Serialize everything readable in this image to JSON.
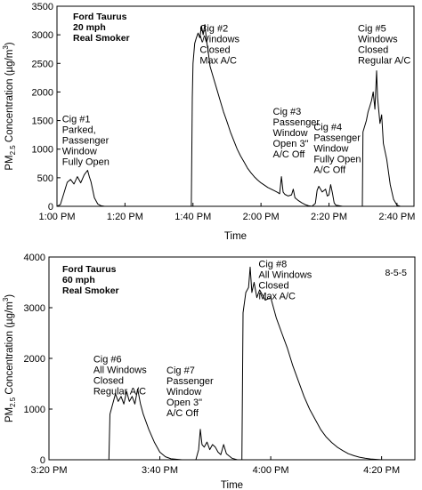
{
  "chart_data": [
    {
      "type": "line",
      "xlabel": "Time",
      "ylabel": "PM",
      "ylabel_sub": "2.5",
      "ylabel_tail": " Concentration (µg/m",
      "ylabel_sup": "3",
      "ylabel_close": ")",
      "xlim": [
        0,
        105
      ],
      "ylim": [
        0,
        3500
      ],
      "y_ticks": [
        0,
        500,
        1000,
        1500,
        2000,
        2500,
        3000,
        3500
      ],
      "x_ticks": [
        {
          "v": 0,
          "label": "1:00 PM"
        },
        {
          "v": 20,
          "label": "1:20 PM"
        },
        {
          "v": 40,
          "label": "1:40 PM"
        },
        {
          "v": 60,
          "label": "2:00 PM"
        },
        {
          "v": 80,
          "label": "2:20 PM"
        },
        {
          "v": 100,
          "label": "2:40 PM"
        }
      ],
      "info_lines": [
        "Ford Taurus",
        "20 mph",
        "Real Smoker"
      ],
      "annotations": [
        {
          "x": 1.5,
          "y": 1470,
          "lines": [
            "Cig #1",
            "Parked,",
            "Passenger",
            "Window",
            "Fully Open"
          ]
        },
        {
          "x": 42,
          "y": 3060,
          "lines": [
            "Cig #2",
            "Windows",
            "Closed",
            "Max A/C"
          ]
        },
        {
          "x": 63.5,
          "y": 1600,
          "lines": [
            "Cig #3",
            "Passenger",
            "Window",
            "Open 3\"",
            "A/C Off"
          ]
        },
        {
          "x": 75.5,
          "y": 1330,
          "lines": [
            "Cig #4",
            "Passenger",
            "Window",
            "Fully Open",
            "A/C Off"
          ]
        },
        {
          "x": 88.5,
          "y": 3060,
          "lines": [
            "Cig #5",
            "Windows",
            "Closed",
            "Regular A/C"
          ]
        }
      ],
      "series": [
        {
          "points": [
            [
              0,
              0
            ],
            [
              1,
              30
            ],
            [
              2,
              220
            ],
            [
              3,
              420
            ],
            [
              4,
              470
            ],
            [
              5,
              390
            ],
            [
              6,
              520
            ],
            [
              7,
              410
            ],
            [
              8,
              550
            ],
            [
              9,
              630
            ],
            [
              9.5,
              520
            ],
            [
              10,
              430
            ],
            [
              11,
              150
            ],
            [
              12,
              40
            ],
            [
              13,
              10
            ],
            [
              14,
              0
            ],
            [
              39.5,
              0
            ],
            [
              39.8,
              1900
            ],
            [
              40,
              2500
            ],
            [
              40.5,
              2850
            ],
            [
              41,
              2950
            ],
            [
              41.5,
              3030
            ],
            [
              42,
              2950
            ],
            [
              42.5,
              3150
            ],
            [
              43,
              3000
            ],
            [
              43.5,
              3180
            ],
            [
              44,
              2900
            ],
            [
              44.5,
              2700
            ],
            [
              45,
              2450
            ],
            [
              46,
              2250
            ],
            [
              47,
              2050
            ],
            [
              48,
              1850
            ],
            [
              49,
              1650
            ],
            [
              50,
              1480
            ],
            [
              51,
              1300
            ],
            [
              52,
              1150
            ],
            [
              53,
              1000
            ],
            [
              54,
              880
            ],
            [
              55,
              780
            ],
            [
              56,
              670
            ],
            [
              57,
              590
            ],
            [
              58,
              520
            ],
            [
              59,
              460
            ],
            [
              60,
              410
            ],
            [
              61,
              370
            ],
            [
              62,
              330
            ],
            [
              63,
              300
            ],
            [
              64,
              270
            ],
            [
              65,
              240
            ],
            [
              65.5,
              220
            ],
            [
              66,
              520
            ],
            [
              66.5,
              250
            ],
            [
              67,
              210
            ],
            [
              68,
              180
            ],
            [
              69,
              200
            ],
            [
              69.5,
              300
            ],
            [
              70,
              150
            ],
            [
              71,
              100
            ],
            [
              72,
              60
            ],
            [
              73,
              30
            ],
            [
              74,
              10
            ],
            [
              75,
              0
            ],
            [
              76,
              50
            ],
            [
              76.5,
              280
            ],
            [
              77,
              350
            ],
            [
              78,
              250
            ],
            [
              79,
              300
            ],
            [
              79.5,
              180
            ],
            [
              80,
              200
            ],
            [
              80.5,
              380
            ],
            [
              81,
              240
            ],
            [
              81.5,
              60
            ],
            [
              82,
              20
            ],
            [
              84,
              0
            ],
            [
              89.8,
              0
            ],
            [
              90,
              1300
            ],
            [
              91,
              1500
            ],
            [
              91.5,
              1650
            ],
            [
              92,
              1750
            ],
            [
              92.5,
              1850
            ],
            [
              93,
              2000
            ],
            [
              93.5,
              1700
            ],
            [
              94,
              2370
            ],
            [
              94.3,
              1900
            ],
            [
              95,
              1450
            ],
            [
              95.5,
              1600
            ],
            [
              96,
              1100
            ],
            [
              97,
              820
            ],
            [
              98,
              380
            ],
            [
              99,
              120
            ],
            [
              100,
              20
            ],
            [
              101,
              0
            ],
            [
              105,
              0
            ]
          ]
        }
      ]
    },
    {
      "type": "line",
      "xlabel": "Time",
      "ylabel": "PM",
      "ylabel_sub": "2.5",
      "ylabel_tail": " Concentration (µg/m",
      "ylabel_sup": "3",
      "ylabel_close": ")",
      "xlim": [
        0,
        66
      ],
      "ylim": [
        0,
        4000
      ],
      "y_ticks": [
        0,
        1000,
        2000,
        3000,
        4000
      ],
      "x_ticks": [
        {
          "v": 0,
          "label": "3:20 PM"
        },
        {
          "v": 20,
          "label": "3:40 PM"
        },
        {
          "v": 40,
          "label": "4:00 PM"
        },
        {
          "v": 60,
          "label": "4:20 PM"
        }
      ],
      "info_lines": [
        "Ford Taurus",
        "60 mph",
        "Real Smoker"
      ],
      "date_label": "8-5-5",
      "annotations": [
        {
          "x": 8,
          "y": 1920,
          "lines": [
            "Cig #6",
            "All Windows",
            "Closed",
            "Regular A/C"
          ]
        },
        {
          "x": 21.2,
          "y": 1700,
          "lines": [
            "Cig #7",
            "Passenger",
            "Window",
            "Open 3\"",
            "A/C Off"
          ]
        },
        {
          "x": 37.8,
          "y": 3800,
          "lines": [
            "Cig #8",
            "All Windows",
            "Closed",
            "Max A/C"
          ]
        }
      ],
      "series": [
        {
          "points": [
            [
              0,
              0
            ],
            [
              10.8,
              0
            ],
            [
              11,
              900
            ],
            [
              11.5,
              1100
            ],
            [
              12,
              1300
            ],
            [
              12.5,
              1150
            ],
            [
              13,
              1250
            ],
            [
              13.5,
              1100
            ],
            [
              14,
              1350
            ],
            [
              14.5,
              1150
            ],
            [
              15,
              1250
            ],
            [
              15.5,
              1100
            ],
            [
              16,
              1400
            ],
            [
              16.5,
              1100
            ],
            [
              17,
              900
            ],
            [
              18,
              600
            ],
            [
              19,
              350
            ],
            [
              20,
              150
            ],
            [
              21,
              60
            ],
            [
              22,
              20
            ],
            [
              24,
              0
            ],
            [
              26.5,
              0
            ],
            [
              27,
              200
            ],
            [
              27.3,
              600
            ],
            [
              27.6,
              300
            ],
            [
              28,
              250
            ],
            [
              28.5,
              350
            ],
            [
              29,
              200
            ],
            [
              29.5,
              300
            ],
            [
              30,
              250
            ],
            [
              30.5,
              150
            ],
            [
              31,
              100
            ],
            [
              31.5,
              300
            ],
            [
              32,
              120
            ],
            [
              33,
              30
            ],
            [
              34,
              0
            ],
            [
              34.8,
              0
            ],
            [
              35,
              2900
            ],
            [
              35.5,
              3300
            ],
            [
              36,
              3400
            ],
            [
              36.3,
              3800
            ],
            [
              36.6,
              3300
            ],
            [
              37,
              3500
            ],
            [
              37.5,
              3200
            ],
            [
              38,
              3350
            ],
            [
              38.5,
              3250
            ],
            [
              39,
              3150
            ],
            [
              40,
              3200
            ],
            [
              40.5,
              3000
            ],
            [
              41,
              2800
            ],
            [
              42,
              2500
            ],
            [
              43,
              2200
            ],
            [
              44,
              1850
            ],
            [
              45,
              1550
            ],
            [
              46,
              1250
            ],
            [
              47,
              1000
            ],
            [
              48,
              800
            ],
            [
              49,
              600
            ],
            [
              50,
              450
            ],
            [
              51,
              340
            ],
            [
              52,
              250
            ],
            [
              53,
              180
            ],
            [
              54,
              120
            ],
            [
              55,
              80
            ],
            [
              56,
              50
            ],
            [
              57,
              30
            ],
            [
              58,
              15
            ],
            [
              60,
              0
            ],
            [
              66,
              0
            ]
          ]
        }
      ]
    }
  ]
}
